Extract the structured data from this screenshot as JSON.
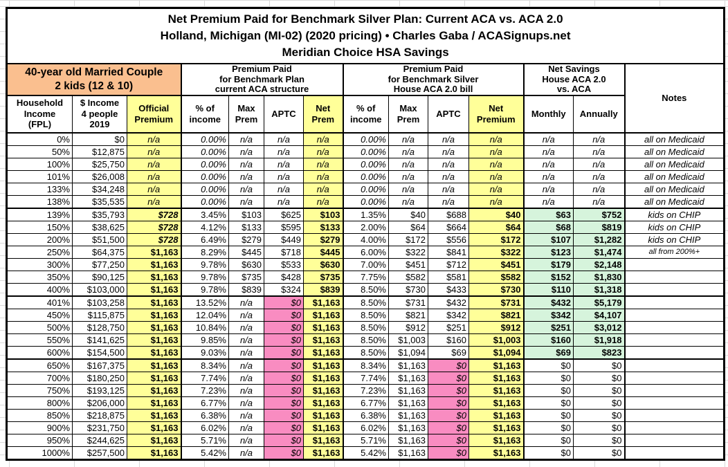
{
  "chart_data": {
    "type": "table",
    "title": {
      "line1": "Net Premium Paid for Benchmark Silver Plan: Current ACA vs. ACA 2.0",
      "line2": "Holland, Michigan (MI-02) (2020 pricing) • Charles Gaba / ACASignups.net",
      "line3": "Meridian Choice HSA Savings"
    },
    "header_groups": {
      "demographic": "40-year old Married Couple\n2 kids (12 & 10)",
      "current_aca": "Premium Paid\nfor Benchmark Plan\ncurrent ACA structure",
      "house_aca2": "Premium Paid\nfor Benchmark Silver\nHouse ACA 2.0 bill",
      "net_savings": "Net Savings\nHouse ACA 2.0\nvs. ACA",
      "notes": "Notes"
    },
    "columns": [
      "Household\nIncome\n(FPL)",
      "$ Income\n4 people\n2019",
      "Official\nPremium",
      "% of\nincome",
      "Max\nPrem",
      "APTC",
      "Net\nPrem",
      "% of\nincome",
      "Max\nPrem",
      "APTC",
      "Net\nPremium",
      "Monthly",
      "Annually"
    ],
    "colors": {
      "demographic_header": "#FABF8F",
      "premium_highlight": "#FFFF99",
      "zero_aptc": "#F98CC1",
      "savings_highlight": "#D6F4DC"
    },
    "rows": [
      {
        "group": "medicaid",
        "cells": [
          "0%",
          "$0",
          "n/a",
          "0.00%",
          "n/a",
          "n/a",
          "n/a",
          "0.00%",
          "n/a",
          "n/a",
          "n/a",
          "n/a",
          "n/a",
          "all on Medicaid"
        ]
      },
      {
        "group": "medicaid",
        "cells": [
          "50%",
          "$12,875",
          "n/a",
          "0.00%",
          "n/a",
          "n/a",
          "n/a",
          "0.00%",
          "n/a",
          "n/a",
          "n/a",
          "n/a",
          "n/a",
          "all on Medicaid"
        ]
      },
      {
        "group": "medicaid",
        "cells": [
          "100%",
          "$25,750",
          "n/a",
          "0.00%",
          "n/a",
          "n/a",
          "n/a",
          "0.00%",
          "n/a",
          "n/a",
          "n/a",
          "n/a",
          "n/a",
          "all on Medicaid"
        ]
      },
      {
        "group": "medicaid",
        "cells": [
          "101%",
          "$26,008",
          "n/a",
          "0.00%",
          "n/a",
          "n/a",
          "n/a",
          "0.00%",
          "n/a",
          "n/a",
          "n/a",
          "n/a",
          "n/a",
          "all on Medicaid"
        ]
      },
      {
        "group": "medicaid",
        "cells": [
          "133%",
          "$34,248",
          "n/a",
          "0.00%",
          "n/a",
          "n/a",
          "n/a",
          "0.00%",
          "n/a",
          "n/a",
          "n/a",
          "n/a",
          "n/a",
          "all on Medicaid"
        ]
      },
      {
        "group": "medicaid",
        "cells": [
          "138%",
          "$35,535",
          "n/a",
          "0.00%",
          "n/a",
          "n/a",
          "n/a",
          "0.00%",
          "n/a",
          "n/a",
          "n/a",
          "n/a",
          "n/a",
          "all on Medicaid"
        ]
      },
      {
        "group": "chip",
        "section_start": true,
        "savings": "green",
        "cells": [
          "139%",
          "$35,793",
          "$728",
          "3.45%",
          "$103",
          "$625",
          "$103",
          "1.35%",
          "$40",
          "$688",
          "$40",
          "$63",
          "$752",
          "kids on CHIP"
        ]
      },
      {
        "group": "chip",
        "savings": "green",
        "cells": [
          "150%",
          "$38,625",
          "$728",
          "4.12%",
          "$133",
          "$595",
          "$133",
          "2.00%",
          "$64",
          "$664",
          "$64",
          "$68",
          "$819",
          "kids on CHIP"
        ]
      },
      {
        "group": "chip",
        "savings": "green",
        "cells": [
          "200%",
          "$51,500",
          "$728",
          "6.49%",
          "$279",
          "$449",
          "$279",
          "4.00%",
          "$172",
          "$556",
          "$172",
          "$107",
          "$1,282",
          "kids on CHIP"
        ]
      },
      {
        "group": "subsidized",
        "savings": "green",
        "cells": [
          "250%",
          "$64,375",
          "$1,163",
          "8.29%",
          "$445",
          "$718",
          "$445",
          "6.00%",
          "$322",
          "$841",
          "$322",
          "$123",
          "$1,474",
          "all from 200%+"
        ]
      },
      {
        "group": "subsidized",
        "savings": "green",
        "cells": [
          "300%",
          "$77,250",
          "$1,163",
          "9.78%",
          "$630",
          "$533",
          "$630",
          "7.00%",
          "$451",
          "$712",
          "$451",
          "$179",
          "$2,148",
          ""
        ]
      },
      {
        "group": "subsidized",
        "savings": "green",
        "cells": [
          "350%",
          "$90,125",
          "$1,163",
          "9.78%",
          "$735",
          "$428",
          "$735",
          "7.75%",
          "$582",
          "$581",
          "$582",
          "$152",
          "$1,830",
          ""
        ]
      },
      {
        "group": "subsidized",
        "savings": "green",
        "cells": [
          "400%",
          "$103,000",
          "$1,163",
          "9.78%",
          "$839",
          "$324",
          "$839",
          "8.50%",
          "$730",
          "$433",
          "$730",
          "$110",
          "$1,318",
          ""
        ]
      },
      {
        "group": "cliff-401-600",
        "section_start": true,
        "savings": "green",
        "cells": [
          "401%",
          "$103,258",
          "$1,163",
          "13.52%",
          "n/a",
          "$0",
          "$1,163",
          "8.50%",
          "$731",
          "$432",
          "$731",
          "$432",
          "$5,179",
          ""
        ]
      },
      {
        "group": "cliff-401-600",
        "savings": "green",
        "cells": [
          "450%",
          "$115,875",
          "$1,163",
          "12.04%",
          "n/a",
          "$0",
          "$1,163",
          "8.50%",
          "$821",
          "$342",
          "$821",
          "$342",
          "$4,107",
          ""
        ]
      },
      {
        "group": "cliff-401-600",
        "savings": "green",
        "cells": [
          "500%",
          "$128,750",
          "$1,163",
          "10.84%",
          "n/a",
          "$0",
          "$1,163",
          "8.50%",
          "$912",
          "$251",
          "$912",
          "$251",
          "$3,012",
          ""
        ]
      },
      {
        "group": "cliff-401-600",
        "savings": "green",
        "cells": [
          "550%",
          "$141,625",
          "$1,163",
          "9.85%",
          "n/a",
          "$0",
          "$1,163",
          "8.50%",
          "$1,003",
          "$160",
          "$1,003",
          "$160",
          "$1,918",
          ""
        ]
      },
      {
        "group": "cliff-401-600",
        "savings": "green",
        "cells": [
          "600%",
          "$154,500",
          "$1,163",
          "9.03%",
          "n/a",
          "$0",
          "$1,163",
          "8.50%",
          "$1,094",
          "$69",
          "$1,094",
          "$69",
          "$823",
          ""
        ]
      },
      {
        "group": "over-600",
        "section_start": true,
        "cells": [
          "650%",
          "$167,375",
          "$1,163",
          "8.34%",
          "n/a",
          "$0",
          "$1,163",
          "8.34%",
          "$1,163",
          "$0",
          "$1,163",
          "$0",
          "$0",
          ""
        ]
      },
      {
        "group": "over-600",
        "cells": [
          "700%",
          "$180,250",
          "$1,163",
          "7.74%",
          "n/a",
          "$0",
          "$1,163",
          "7.74%",
          "$1,163",
          "$0",
          "$1,163",
          "$0",
          "$0",
          ""
        ]
      },
      {
        "group": "over-600",
        "cells": [
          "750%",
          "$193,125",
          "$1,163",
          "7.23%",
          "n/a",
          "$0",
          "$1,163",
          "7.23%",
          "$1,163",
          "$0",
          "$1,163",
          "$0",
          "$0",
          ""
        ]
      },
      {
        "group": "over-600",
        "cells": [
          "800%",
          "$206,000",
          "$1,163",
          "6.77%",
          "n/a",
          "$0",
          "$1,163",
          "6.77%",
          "$1,163",
          "$0",
          "$1,163",
          "$0",
          "$0",
          ""
        ]
      },
      {
        "group": "over-600",
        "cells": [
          "850%",
          "$218,875",
          "$1,163",
          "6.38%",
          "n/a",
          "$0",
          "$1,163",
          "6.38%",
          "$1,163",
          "$0",
          "$1,163",
          "$0",
          "$0",
          ""
        ]
      },
      {
        "group": "over-600",
        "cells": [
          "900%",
          "$231,750",
          "$1,163",
          "6.02%",
          "n/a",
          "$0",
          "$1,163",
          "6.02%",
          "$1,163",
          "$0",
          "$1,163",
          "$0",
          "$0",
          ""
        ]
      },
      {
        "group": "over-600",
        "cells": [
          "950%",
          "$244,625",
          "$1,163",
          "5.71%",
          "n/a",
          "$0",
          "$1,163",
          "5.71%",
          "$1,163",
          "$0",
          "$1,163",
          "$0",
          "$0",
          ""
        ]
      },
      {
        "group": "over-600",
        "cells": [
          "1000%",
          "$257,500",
          "$1,163",
          "5.42%",
          "n/a",
          "$0",
          "$1,163",
          "5.42%",
          "$1,163",
          "$0",
          "$1,163",
          "$0",
          "$0",
          ""
        ]
      }
    ]
  }
}
